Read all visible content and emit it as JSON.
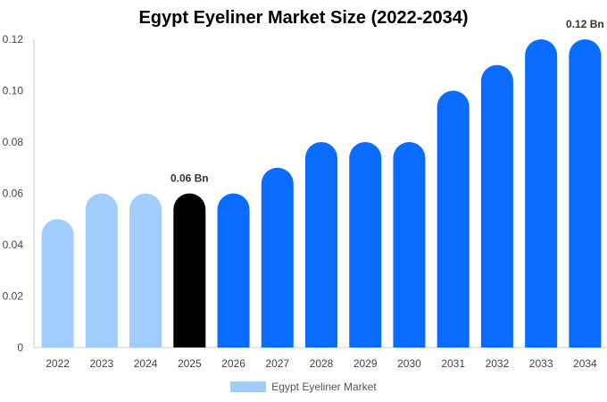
{
  "chart_data": {
    "type": "bar",
    "title": "Egypt Eyeliner Market Size (2022-2034)",
    "categories": [
      "2022",
      "2023",
      "2024",
      "2025",
      "2026",
      "2027",
      "2028",
      "2029",
      "2030",
      "2031",
      "2032",
      "2033",
      "2034"
    ],
    "series": [
      {
        "name": "Egypt Eyeliner Market",
        "values": [
          0.05,
          0.06,
          0.06,
          0.06,
          0.06,
          0.07,
          0.08,
          0.08,
          0.08,
          0.1,
          0.11,
          0.12,
          0.12
        ]
      }
    ],
    "ylim": [
      0,
      0.12
    ],
    "yticks": [
      "0",
      "0.02",
      "0.04",
      "0.06",
      "0.08",
      "0.10",
      "0.12"
    ],
    "ytick_values": [
      0,
      0.02,
      0.04,
      0.06,
      0.08,
      0.1,
      0.12
    ],
    "data_labels": [
      {
        "index": 3,
        "text": "0.06 Bn"
      },
      {
        "index": 12,
        "text": "0.12 Bn"
      }
    ],
    "bar_colors": {
      "historical": "#a0cdfc",
      "current": "#000000",
      "forecast": "#0a6cff"
    },
    "current_index": 3,
    "grid": false,
    "legend_position": "bottom-center",
    "legend_color": "#a0cdfc"
  }
}
